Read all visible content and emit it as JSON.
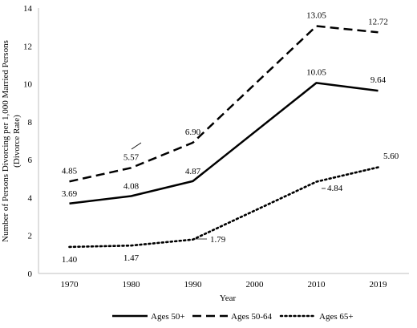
{
  "chart_data": {
    "type": "line",
    "xlabel": "Year",
    "ylabel_line1": "Number of Persons Divorcing per 1,000 Married Persons",
    "ylabel_line2": "(Divorce Rate)",
    "ylim": [
      0,
      14
    ],
    "yticks": [
      "0",
      "2",
      "4",
      "6",
      "8",
      "10",
      "12",
      "14"
    ],
    "categories": [
      "1970",
      "1980",
      "1990",
      "2000",
      "2010",
      "2019"
    ],
    "grid": false,
    "legend_position": "bottom",
    "series": [
      {
        "name": "Ages 50+",
        "style": "solid",
        "points": [
          {
            "x": 1970,
            "y": 3.69,
            "label": "3.69"
          },
          {
            "x": 1980,
            "y": 4.08,
            "label": "4.08"
          },
          {
            "x": 1990,
            "y": 4.87,
            "label": "4.87"
          },
          {
            "x": 2010,
            "y": 10.05,
            "label": "10.05"
          },
          {
            "x": 2019,
            "y": 9.64,
            "label": "9.64"
          }
        ]
      },
      {
        "name": "Ages 50-64",
        "style": "dashed",
        "points": [
          {
            "x": 1970,
            "y": 4.85,
            "label": "4.85"
          },
          {
            "x": 1980,
            "y": 5.57,
            "label": "5.57"
          },
          {
            "x": 1990,
            "y": 6.9,
            "label": "6.90"
          },
          {
            "x": 2010,
            "y": 13.05,
            "label": "13.05"
          },
          {
            "x": 2019,
            "y": 12.72,
            "label": "12.72"
          }
        ]
      },
      {
        "name": "Ages 65+",
        "style": "dotted",
        "points": [
          {
            "x": 1970,
            "y": 1.4,
            "label": "1.40"
          },
          {
            "x": 1980,
            "y": 1.47,
            "label": "1.47"
          },
          {
            "x": 1990,
            "y": 1.79,
            "label": "1.79"
          },
          {
            "x": 2010,
            "y": 4.84,
            "label": "4.84"
          },
          {
            "x": 2019,
            "y": 5.6,
            "label": "5.60"
          }
        ]
      }
    ]
  }
}
